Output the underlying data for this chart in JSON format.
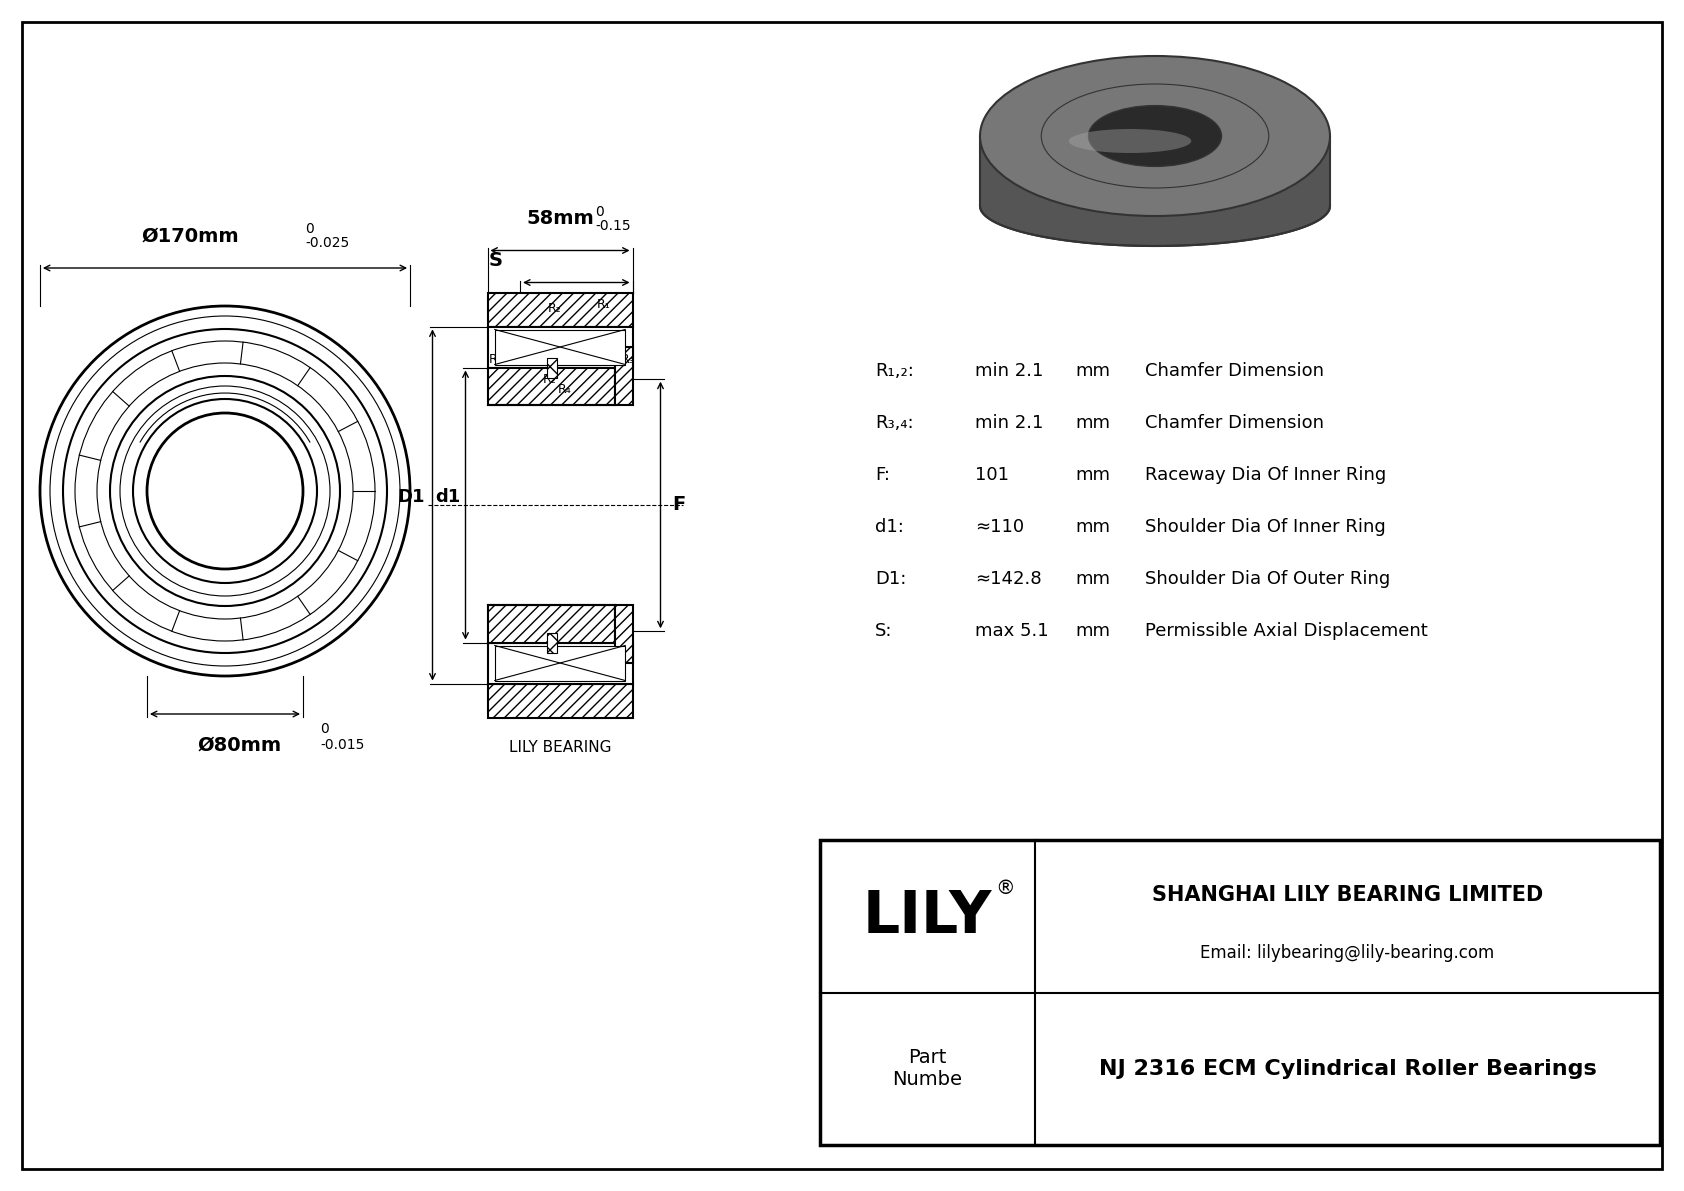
{
  "bg_color": "#ffffff",
  "line_color": "#000000",
  "title": "NJ 2316 ECM Cylindrical Roller Bearings",
  "company": "SHANGHAI LILY BEARING LIMITED",
  "email": "Email: lilybearing@lily-bearing.com",
  "part_label": "Part\nNumbe",
  "brand": "LILY",
  "brand_reg": "®",
  "subtitle": "LILY BEARING",
  "outer_dia_label": "Ø170mm",
  "inner_dia_label": "Ø80mm",
  "width_label": "58mm",
  "specs": [
    {
      "key": "R₁,₂:",
      "value": "min 2.1",
      "unit": "mm",
      "desc": "Chamfer Dimension"
    },
    {
      "key": "R₃,₄:",
      "value": "min 2.1",
      "unit": "mm",
      "desc": "Chamfer Dimension"
    },
    {
      "key": "F:",
      "value": "101",
      "unit": "mm",
      "desc": "Raceway Dia Of Inner Ring"
    },
    {
      "key": "d1:",
      "value": "≈110",
      "unit": "mm",
      "desc": "Shoulder Dia Of Inner Ring"
    },
    {
      "key": "D1:",
      "value": "≈142.8",
      "unit": "mm",
      "desc": "Shoulder Dia Of Outer Ring"
    },
    {
      "key": "S:",
      "value": "max 5.1",
      "unit": "mm",
      "desc": "Permissible Axial Displacement"
    }
  ]
}
